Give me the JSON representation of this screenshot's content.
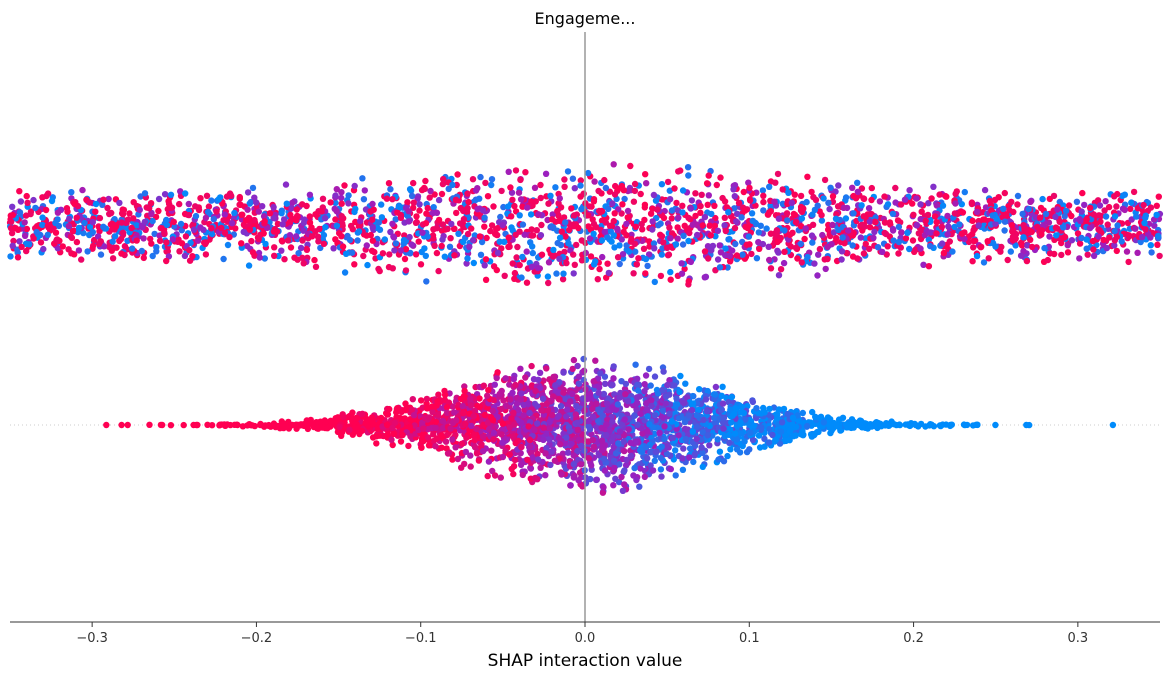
{
  "chart_data": {
    "type": "scatter",
    "subtype": "shap-interaction-beeswarm",
    "title": "Engageme...",
    "xlabel": "SHAP interaction value",
    "ylabel": "",
    "xlim": [
      -0.35,
      0.35
    ],
    "xticks": [
      -0.3,
      -0.2,
      -0.1,
      0.0,
      0.1,
      0.2,
      0.3
    ],
    "xtick_labels": [
      "−0.3",
      "−0.2",
      "−0.1",
      "0.0",
      "0.1",
      "0.2",
      "0.3"
    ],
    "grid": false,
    "legend": "none",
    "zero_line": true,
    "colors": {
      "high": "#ff0052",
      "low": "#008bfb",
      "mid": "#9a1fc0",
      "zero_line": "#999999",
      "axis": "#333333",
      "row_guide": "#cccccc"
    },
    "rows": [
      {
        "label": "",
        "x_range": [
          -0.35,
          0.35
        ],
        "max_spread": 0.31,
        "color_pattern": "mixed",
        "approx_points": 2700
      },
      {
        "label": "",
        "x_range": [
          -0.32,
          0.325
        ],
        "max_spread": 0.27,
        "color_pattern": "gradient: high values on negative side, low values on positive side",
        "approx_points": 2700
      }
    ]
  }
}
